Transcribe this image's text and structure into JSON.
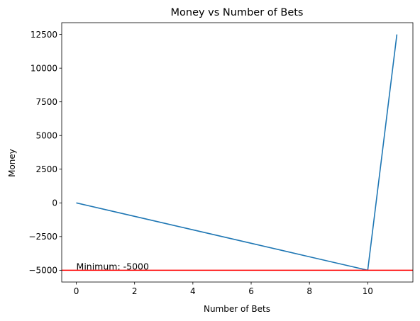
{
  "chart_data": {
    "type": "line",
    "title": "Money vs Number of Bets",
    "xlabel": "Number of Bets",
    "ylabel": "Money",
    "xlim": [
      -0.5,
      11.55
    ],
    "ylim": [
      -5875,
      13375
    ],
    "x_ticks": [
      0,
      2,
      4,
      6,
      8,
      10
    ],
    "x_tick_labels": [
      "0",
      "2",
      "4",
      "6",
      "8",
      "10"
    ],
    "y_ticks": [
      -5000,
      -2500,
      0,
      2500,
      5000,
      7500,
      10000,
      12500
    ],
    "y_tick_labels": [
      "−5000",
      "−2500",
      "0",
      "2500",
      "5000",
      "7500",
      "10000",
      "12500"
    ],
    "grid": false,
    "series": [
      {
        "color": "#1f77b4",
        "x": [
          0,
          1,
          2,
          3,
          4,
          5,
          6,
          7,
          8,
          9,
          10,
          11
        ],
        "y": [
          0,
          -500,
          -1000,
          -1500,
          -2000,
          -2500,
          -3000,
          -3500,
          -4000,
          -4500,
          -5000,
          12500
        ]
      }
    ],
    "hline": {
      "y": -5000,
      "color": "#ff0000"
    },
    "annotation": {
      "text": "Minimum: -5000",
      "x": 0,
      "y": -5000
    }
  }
}
